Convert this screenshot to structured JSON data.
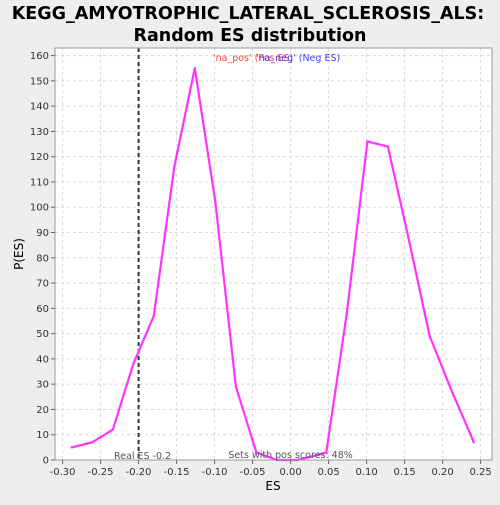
{
  "chart_data": {
    "type": "line",
    "title_line1": "KEGG_AMYOTROPHIC_LATERAL_SCLEROSIS_ALS:",
    "title_line2": "Random ES distribution",
    "xlabel": "ES",
    "ylabel": "P(ES)",
    "xlim": [
      -0.31,
      0.265
    ],
    "ylim": [
      0,
      163
    ],
    "xticks": [
      -0.3,
      -0.25,
      -0.2,
      -0.15,
      -0.1,
      -0.05,
      0.0,
      0.05,
      0.1,
      0.15,
      0.2,
      0.25
    ],
    "xtick_labels": [
      "-0.30",
      "-0.25",
      "-0.20",
      "-0.15",
      "-0.10",
      "-0.05",
      "0.00",
      "0.05",
      "0.10",
      "0.15",
      "0.20",
      "0.25"
    ],
    "yticks": [
      0,
      10,
      20,
      30,
      40,
      50,
      60,
      70,
      80,
      90,
      100,
      110,
      120,
      130,
      140,
      150,
      160
    ],
    "ytick_labels": [
      "0",
      "10",
      "20",
      "30",
      "40",
      "50",
      "60",
      "70",
      "80",
      "90",
      "100",
      "110",
      "120",
      "130",
      "140",
      "150",
      "160"
    ],
    "grid": true,
    "series": [
      {
        "name": "",
        "color": "#ff33ff",
        "x": [
          -0.288,
          -0.261,
          -0.234,
          -0.207,
          -0.18,
          -0.153,
          -0.126,
          -0.099,
          -0.072,
          -0.045,
          -0.018,
          0.009,
          0.036,
          0.047,
          0.074,
          0.101,
          0.128,
          0.155,
          0.183,
          0.211,
          0.241
        ],
        "y": [
          5,
          7,
          12,
          38,
          57,
          116,
          155,
          102,
          29,
          3,
          0,
          0,
          2,
          3,
          58,
          126,
          124,
          88,
          49,
          28,
          7
        ]
      }
    ],
    "real_es": -0.2,
    "real_es_label": "Real ES -0.2",
    "pos_scores_label": "Sets with pos scores: 48%",
    "legend": [
      {
        "label": "'na_pos' (Pos ES)",
        "color": "#ff4040"
      },
      {
        "label": "'na_neg' (Neg ES)",
        "color": "#4040ff"
      }
    ],
    "legend_placement": "top-center",
    "colors": {
      "plot_bg": "#ffffff",
      "page_bg": "#eeeeee",
      "grid": "#d8d8d8",
      "real_es_line": "#333333"
    }
  }
}
